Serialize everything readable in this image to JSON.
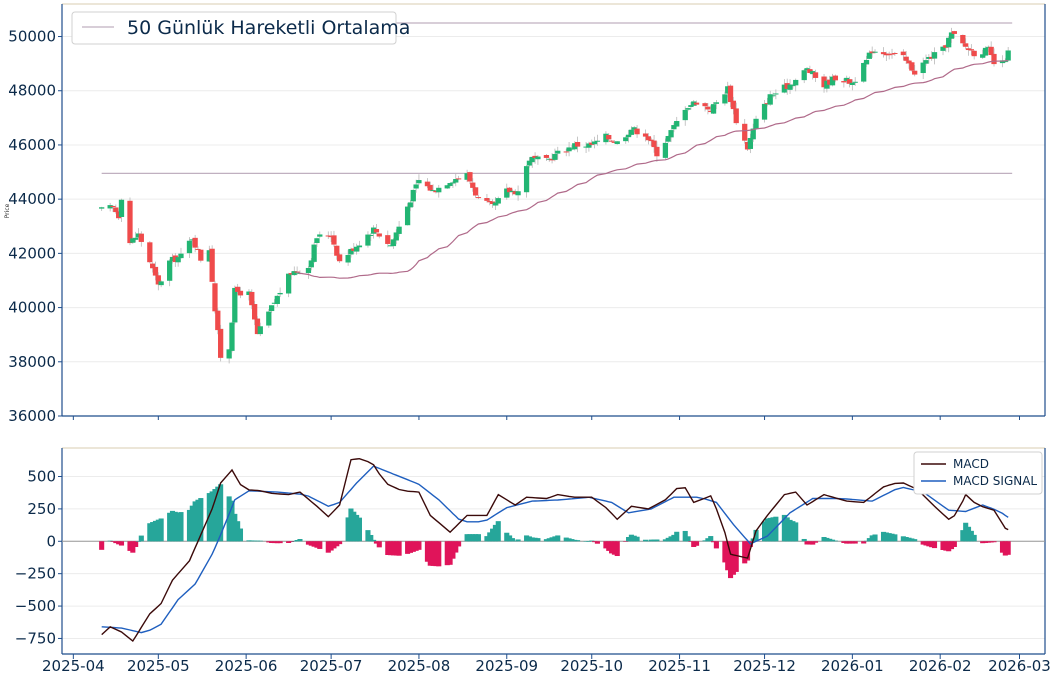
{
  "chart_data": [
    {
      "type": "candlestick",
      "ylabel": "Price",
      "ylim": [
        36000,
        51200
      ],
      "yticks": [
        36000,
        38000,
        40000,
        42000,
        44000,
        46000,
        48000,
        50000
      ],
      "ytick_labels": [
        "36000",
        "38000",
        "40000",
        "42000",
        "44000",
        "46000",
        "48000",
        "50000"
      ],
      "legend": {
        "label": "50 Günlük Hareketli Ortalama",
        "placement": "top-left"
      },
      "horizontal_lines": [
        50500,
        44950
      ],
      "up_color": "#22b573",
      "down_color": "#ef4b4b",
      "ma_color": "#b06a8a",
      "line_color": "#c0b0c0",
      "closes_anchor": [
        [
          "2025-04-11",
          43600
        ],
        [
          "2025-04-15",
          43700
        ],
        [
          "2025-04-17",
          43400
        ],
        [
          "2025-04-18",
          44100
        ],
        [
          "2025-04-21",
          42400
        ],
        [
          "2025-04-24",
          42700
        ],
        [
          "2025-04-28",
          41700
        ],
        [
          "2025-05-01",
          40800
        ],
        [
          "2025-05-05",
          41700
        ],
        [
          "2025-05-09",
          41900
        ],
        [
          "2025-05-13",
          42600
        ],
        [
          "2025-05-16",
          41800
        ],
        [
          "2025-05-19",
          42200
        ],
        [
          "2025-05-21",
          39900
        ],
        [
          "2025-05-23",
          38200
        ],
        [
          "2025-05-25",
          37500
        ],
        [
          "2025-05-28",
          40600
        ],
        [
          "2025-06-02",
          40500
        ],
        [
          "2025-06-05",
          39000
        ],
        [
          "2025-06-09",
          39800
        ],
        [
          "2025-06-13",
          40600
        ],
        [
          "2025-06-17",
          41300
        ],
        [
          "2025-06-23",
          41500
        ],
        [
          "2025-06-26",
          42600
        ],
        [
          "2025-07-01",
          42700
        ],
        [
          "2025-07-04",
          41700
        ],
        [
          "2025-07-10",
          42300
        ],
        [
          "2025-07-16",
          42900
        ],
        [
          "2025-07-22",
          42300
        ],
        [
          "2025-07-25",
          43000
        ],
        [
          "2025-07-29",
          44000
        ],
        [
          "2025-08-01",
          44700
        ],
        [
          "2025-08-06",
          44300
        ],
        [
          "2025-08-12",
          44700
        ],
        [
          "2025-08-18",
          44900
        ],
        [
          "2025-08-22",
          44000
        ],
        [
          "2025-08-27",
          43700
        ],
        [
          "2025-09-01",
          44300
        ],
        [
          "2025-09-05",
          44300
        ],
        [
          "2025-09-09",
          45500
        ],
        [
          "2025-09-15",
          45400
        ],
        [
          "2025-09-19",
          45700
        ],
        [
          "2025-09-25",
          46000
        ],
        [
          "2025-10-01",
          46000
        ],
        [
          "2025-10-06",
          46300
        ],
        [
          "2025-10-10",
          46100
        ],
        [
          "2025-10-15",
          46600
        ],
        [
          "2025-10-20",
          46400
        ],
        [
          "2025-10-24",
          45700
        ],
        [
          "2025-10-28",
          46300
        ],
        [
          "2025-11-03",
          47400
        ],
        [
          "2025-11-07",
          47600
        ],
        [
          "2025-11-12",
          47300
        ],
        [
          "2025-11-18",
          48100
        ],
        [
          "2025-11-21",
          46900
        ],
        [
          "2025-11-25",
          45900
        ],
        [
          "2025-11-28",
          46900
        ],
        [
          "2025-12-03",
          47800
        ],
        [
          "2025-12-08",
          48100
        ],
        [
          "2025-12-12",
          48400
        ],
        [
          "2025-12-16",
          48800
        ],
        [
          "2025-12-22",
          48200
        ],
        [
          "2025-12-26",
          48500
        ],
        [
          "2026-01-01",
          48300
        ],
        [
          "2026-01-05",
          48900
        ],
        [
          "2026-01-08",
          49500
        ],
        [
          "2026-01-14",
          49400
        ],
        [
          "2026-01-19",
          49200
        ],
        [
          "2026-01-23",
          48700
        ],
        [
          "2026-01-28",
          49200
        ],
        [
          "2026-02-02",
          49500
        ],
        [
          "2026-02-05",
          50100
        ],
        [
          "2026-02-09",
          49700
        ],
        [
          "2026-02-13",
          49400
        ],
        [
          "2026-02-18",
          49500
        ],
        [
          "2026-02-20",
          49000
        ],
        [
          "2026-02-23",
          49000
        ],
        [
          "2026-02-25",
          49400
        ]
      ]
    },
    {
      "type": "macd",
      "ylim": [
        -870,
        720
      ],
      "yticks": [
        -750,
        -500,
        -250,
        0,
        250,
        500
      ],
      "ytick_labels": [
        "−750",
        "−500",
        "−250",
        "0",
        "250",
        "500"
      ],
      "legend": {
        "entries": [
          "MACD",
          "MACD SIGNAL"
        ],
        "placement": "top-right"
      },
      "macd_color": "#3b0a0a",
      "signal_color": "#1f5fbf",
      "hist_pos_color": "#26a69a",
      "hist_neg_color": "#e0145a",
      "macd_anchor": [
        [
          "2025-04-11",
          -720
        ],
        [
          "2025-04-14",
          -660
        ],
        [
          "2025-04-18",
          -700
        ],
        [
          "2025-04-22",
          -770
        ],
        [
          "2025-04-28",
          -560
        ],
        [
          "2025-05-02",
          -480
        ],
        [
          "2025-05-06",
          -300
        ],
        [
          "2025-05-12",
          -150
        ],
        [
          "2025-05-16",
          50
        ],
        [
          "2025-05-20",
          250
        ],
        [
          "2025-05-23",
          450
        ],
        [
          "2025-05-27",
          550
        ],
        [
          "2025-05-31",
          400
        ],
        [
          "2025-06-06",
          390
        ],
        [
          "2025-06-10",
          370
        ],
        [
          "2025-06-16",
          360
        ],
        [
          "2025-06-20",
          380
        ],
        [
          "2025-06-26",
          270
        ],
        [
          "2025-06-30",
          190
        ],
        [
          "2025-07-04",
          280
        ],
        [
          "2025-07-08",
          630
        ],
        [
          "2025-07-12",
          640
        ],
        [
          "2025-07-16",
          590
        ],
        [
          "2025-07-20",
          450
        ],
        [
          "2025-07-26",
          390
        ],
        [
          "2025-08-01",
          380
        ],
        [
          "2025-08-05",
          200
        ],
        [
          "2025-08-12",
          70
        ],
        [
          "2025-08-18",
          200
        ],
        [
          "2025-08-25",
          200
        ],
        [
          "2025-08-29",
          360
        ],
        [
          "2025-09-04",
          280
        ],
        [
          "2025-09-08",
          340
        ],
        [
          "2025-09-15",
          330
        ],
        [
          "2025-09-19",
          360
        ],
        [
          "2025-09-25",
          340
        ],
        [
          "2025-10-01",
          340
        ],
        [
          "2025-10-06",
          260
        ],
        [
          "2025-10-10",
          170
        ],
        [
          "2025-10-15",
          270
        ],
        [
          "2025-10-21",
          250
        ],
        [
          "2025-10-27",
          320
        ],
        [
          "2025-11-02",
          450
        ],
        [
          "2025-11-06",
          300
        ],
        [
          "2025-11-12",
          350
        ],
        [
          "2025-11-16",
          150
        ],
        [
          "2025-11-19",
          -100
        ],
        [
          "2025-11-25",
          -130
        ],
        [
          "2025-11-28",
          80
        ],
        [
          "2025-12-02",
          200
        ],
        [
          "2025-12-08",
          360
        ],
        [
          "2025-12-12",
          380
        ],
        [
          "2025-12-16",
          280
        ],
        [
          "2025-12-22",
          360
        ],
        [
          "2025-12-30",
          310
        ],
        [
          "2026-01-05",
          300
        ],
        [
          "2026-01-12",
          420
        ],
        [
          "2026-01-18",
          460
        ],
        [
          "2026-01-24",
          400
        ],
        [
          "2026-01-30",
          270
        ],
        [
          "2026-02-04",
          170
        ],
        [
          "2026-02-07",
          210
        ],
        [
          "2026-02-10",
          360
        ],
        [
          "2026-02-14",
          280
        ],
        [
          "2026-02-20",
          240
        ],
        [
          "2026-02-24",
          100
        ],
        [
          "2026-02-26",
          80
        ]
      ],
      "signal_anchor": [
        [
          "2025-04-11",
          -660
        ],
        [
          "2025-04-18",
          -670
        ],
        [
          "2025-04-26",
          -710
        ],
        [
          "2025-05-02",
          -640
        ],
        [
          "2025-05-08",
          -450
        ],
        [
          "2025-05-14",
          -330
        ],
        [
          "2025-05-20",
          -100
        ],
        [
          "2025-05-24",
          100
        ],
        [
          "2025-05-28",
          320
        ],
        [
          "2025-06-02",
          390
        ],
        [
          "2025-06-12",
          380
        ],
        [
          "2025-06-22",
          360
        ],
        [
          "2025-06-30",
          270
        ],
        [
          "2025-07-04",
          300
        ],
        [
          "2025-07-10",
          450
        ],
        [
          "2025-07-16",
          580
        ],
        [
          "2025-07-24",
          510
        ],
        [
          "2025-08-01",
          440
        ],
        [
          "2025-08-08",
          320
        ],
        [
          "2025-08-16",
          150
        ],
        [
          "2025-08-24",
          150
        ],
        [
          "2025-09-01",
          260
        ],
        [
          "2025-09-10",
          310
        ],
        [
          "2025-09-20",
          320
        ],
        [
          "2025-09-30",
          340
        ],
        [
          "2025-10-08",
          300
        ],
        [
          "2025-10-14",
          220
        ],
        [
          "2025-10-22",
          250
        ],
        [
          "2025-10-30",
          340
        ],
        [
          "2025-11-08",
          340
        ],
        [
          "2025-11-14",
          300
        ],
        [
          "2025-11-20",
          130
        ],
        [
          "2025-11-26",
          -20
        ],
        [
          "2025-12-02",
          40
        ],
        [
          "2025-12-10",
          220
        ],
        [
          "2025-12-18",
          330
        ],
        [
          "2025-12-28",
          330
        ],
        [
          "2026-01-08",
          310
        ],
        [
          "2026-01-18",
          420
        ],
        [
          "2026-01-26",
          380
        ],
        [
          "2026-02-04",
          240
        ],
        [
          "2026-02-10",
          230
        ],
        [
          "2026-02-16",
          280
        ],
        [
          "2026-02-22",
          230
        ],
        [
          "2026-02-26",
          170
        ]
      ]
    }
  ],
  "x_axis": {
    "ticks": [
      "2025-04-01",
      "2025-05-01",
      "2025-06-01",
      "2025-07-01",
      "2025-08-01",
      "2025-09-01",
      "2025-10-01",
      "2025-11-01",
      "2025-12-01",
      "2026-01-01",
      "2026-02-01",
      "2026-03-01"
    ],
    "tick_labels": [
      "2025-04",
      "2025-05",
      "2025-06",
      "2025-07",
      "2025-08",
      "2025-09",
      "2025-10",
      "2025-11",
      "2025-12",
      "2026-01",
      "2026-02",
      "2026-03"
    ],
    "range": [
      "2025-03-28",
      "2026-03-10"
    ]
  },
  "legend_top": {
    "label": "50 Günlük Hareketli Ortalama"
  },
  "legend_bottom": {
    "macd": "MACD",
    "signal": "MACD SIGNAL"
  }
}
